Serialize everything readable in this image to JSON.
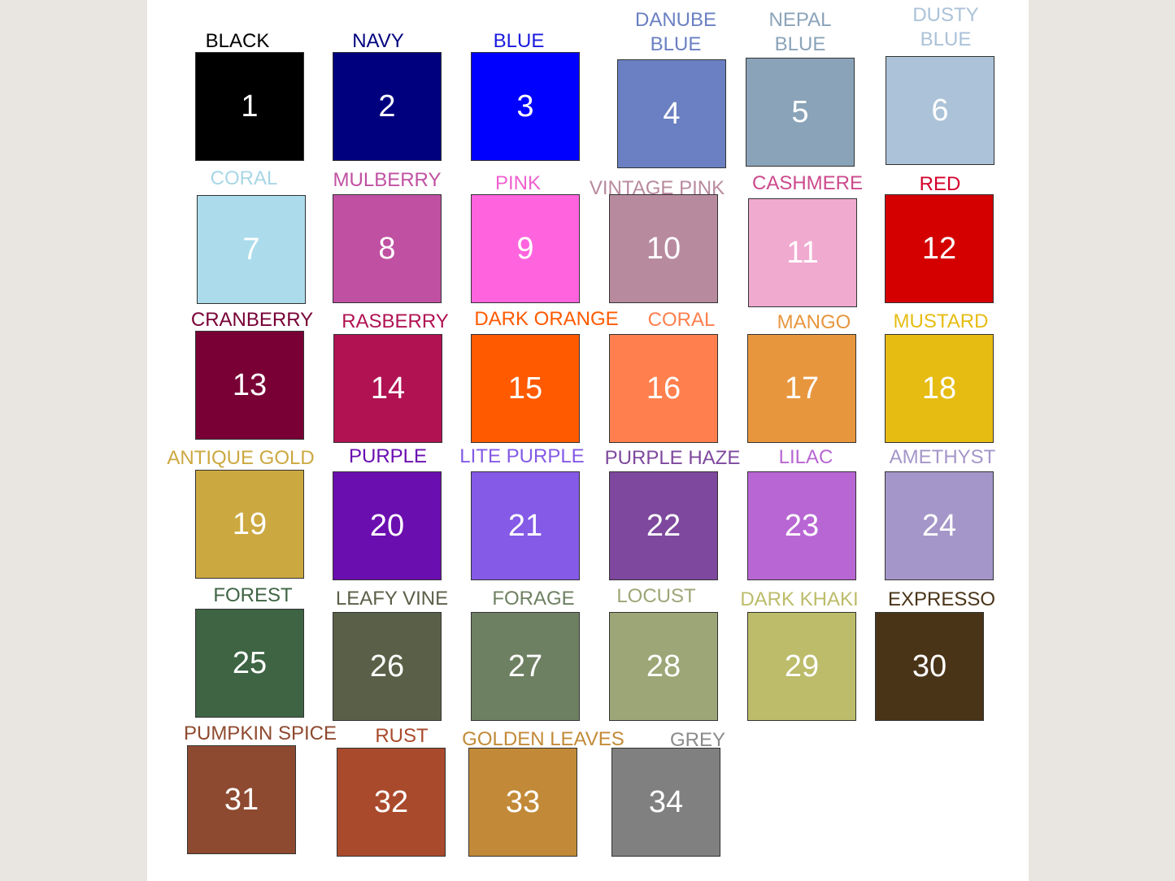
{
  "swatches": [
    {
      "number": "1",
      "name": "BLACK",
      "color": "#000000",
      "label_color": "#000000"
    },
    {
      "number": "2",
      "name": "NAVY",
      "color": "#00007e",
      "label_color": "#00007e"
    },
    {
      "number": "3",
      "name": "BLUE",
      "color": "#0000fe",
      "label_color": "#1a1ae0"
    },
    {
      "number": "4",
      "name": "DANUBE\nBLUE",
      "color": "#6a80c2",
      "label_color": "#6a80c2"
    },
    {
      "number": "5",
      "name": "NEPAL\nBLUE",
      "color": "#8aa3b9",
      "label_color": "#8aa3b9"
    },
    {
      "number": "6",
      "name": "DUSTY\nBLUE",
      "color": "#abc2d8",
      "label_color": "#abc2d8"
    },
    {
      "number": "7",
      "name": "CORAL",
      "color": "#acdcec",
      "label_color": "#a8d6e6"
    },
    {
      "number": "8",
      "name": "MULBERRY",
      "color": "#c050a2",
      "label_color": "#c050a2"
    },
    {
      "number": "9",
      "name": "PINK",
      "color": "#ff64de",
      "label_color": "#f060d0"
    },
    {
      "number": "10",
      "name": "VINTAGE PINK",
      "color": "#b88a9e",
      "label_color": "#b88a9e"
    },
    {
      "number": "11",
      "name": "CASHMERE",
      "color": "#f0aad0",
      "label_color": "#cc4a8c"
    },
    {
      "number": "12",
      "name": "RED",
      "color": "#d40000",
      "label_color": "#d4002a"
    },
    {
      "number": "13",
      "name": "CRANBERRY",
      "color": "#780035",
      "label_color": "#780035"
    },
    {
      "number": "14",
      "name": "RASBERRY",
      "color": "#b01252",
      "label_color": "#b01252"
    },
    {
      "number": "15",
      "name": "DARK ORANGE",
      "color": "#ff5a00",
      "label_color": "#ff5a00"
    },
    {
      "number": "16",
      "name": "CORAL",
      "color": "#ff7f4e",
      "label_color": "#ff7f4e"
    },
    {
      "number": "17",
      "name": "MANGO",
      "color": "#e8963e",
      "label_color": "#e8963e"
    },
    {
      "number": "18",
      "name": "MUSTARD",
      "color": "#e6bc12",
      "label_color": "#e6bc12"
    },
    {
      "number": "19",
      "name": "ANTIQUE GOLD",
      "color": "#cca840",
      "label_color": "#cca840"
    },
    {
      "number": "20",
      "name": "PURPLE",
      "color": "#6a0eb0",
      "label_color": "#6a0eb0"
    },
    {
      "number": "21",
      "name": "LITE PURPLE",
      "color": "#845ae6",
      "label_color": "#845ae6"
    },
    {
      "number": "22",
      "name": "PURPLE HAZE",
      "color": "#7e489e",
      "label_color": "#7e489e"
    },
    {
      "number": "23",
      "name": "LILAC",
      "color": "#b866d4",
      "label_color": "#b866d4"
    },
    {
      "number": "24",
      "name": "AMETHYST",
      "color": "#a496c8",
      "label_color": "#a496c8"
    },
    {
      "number": "25",
      "name": "FOREST",
      "color": "#3e6444",
      "label_color": "#3e6444"
    },
    {
      "number": "26",
      "name": "LEAFY VINE",
      "color": "#5a6048",
      "label_color": "#5a6048"
    },
    {
      "number": "27",
      "name": "FORAGE",
      "color": "#6e8062",
      "label_color": "#6e8062"
    },
    {
      "number": "28",
      "name": "LOCUST",
      "color": "#9ca676",
      "label_color": "#9ca676"
    },
    {
      "number": "29",
      "name": "DARK KHAKI",
      "color": "#bcbc6a",
      "label_color": "#bcbc6a"
    },
    {
      "number": "30",
      "name": "EXPRESSO",
      "color": "#4a3418",
      "label_color": "#4a3418"
    },
    {
      "number": "31",
      "name": "PUMPKIN SPICE",
      "color": "#8e4a30",
      "label_color": "#8e4a30"
    },
    {
      "number": "32",
      "name": "RUST",
      "color": "#aa4a2c",
      "label_color": "#aa4a2c"
    },
    {
      "number": "33",
      "name": "GOLDEN LEAVES",
      "color": "#c28a38",
      "label_color": "#c28a38"
    },
    {
      "number": "34",
      "name": "GREY",
      "color": "#808080",
      "label_color": "#8a8a8a"
    }
  ]
}
